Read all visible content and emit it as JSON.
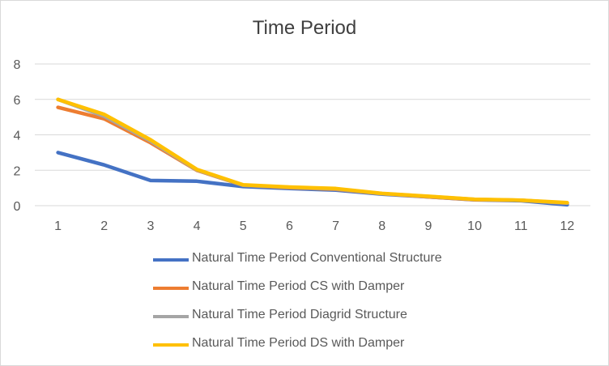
{
  "chart_data": {
    "type": "line",
    "title": "Time Period",
    "xlabel": "",
    "ylabel": "",
    "categories": [
      "1",
      "2",
      "3",
      "4",
      "5",
      "6",
      "7",
      "8",
      "9",
      "10",
      "11",
      "12"
    ],
    "ylim": [
      0,
      8
    ],
    "yticks": [
      "0",
      "2",
      "4",
      "6",
      "8"
    ],
    "grid": "horizontal",
    "legend_position": "bottom",
    "series": [
      {
        "name": "Natural Time Period Conventional Structure",
        "color": "#4472C4",
        "values": [
          3.0,
          2.3,
          1.42,
          1.38,
          1.08,
          0.97,
          0.88,
          0.65,
          0.5,
          0.33,
          0.28,
          0.05
        ]
      },
      {
        "name": "Natural Time Period CS with Damper",
        "color": "#ED7D31",
        "values": [
          5.55,
          4.9,
          3.55,
          2.0,
          1.15,
          1.02,
          0.93,
          0.68,
          0.5,
          0.34,
          0.3,
          0.14
        ]
      },
      {
        "name": "Natural Time Period Diagrid Structure",
        "color": "#A5A5A5",
        "values": [
          6.0,
          5.05,
          3.65,
          2.02,
          1.15,
          1.04,
          0.95,
          0.68,
          0.52,
          0.35,
          0.3,
          0.15
        ]
      },
      {
        "name": "Natural Time Period DS with Damper",
        "color": "#FFC000",
        "values": [
          6.0,
          5.15,
          3.72,
          2.05,
          1.18,
          1.05,
          0.97,
          0.69,
          0.53,
          0.36,
          0.31,
          0.17
        ]
      }
    ]
  }
}
